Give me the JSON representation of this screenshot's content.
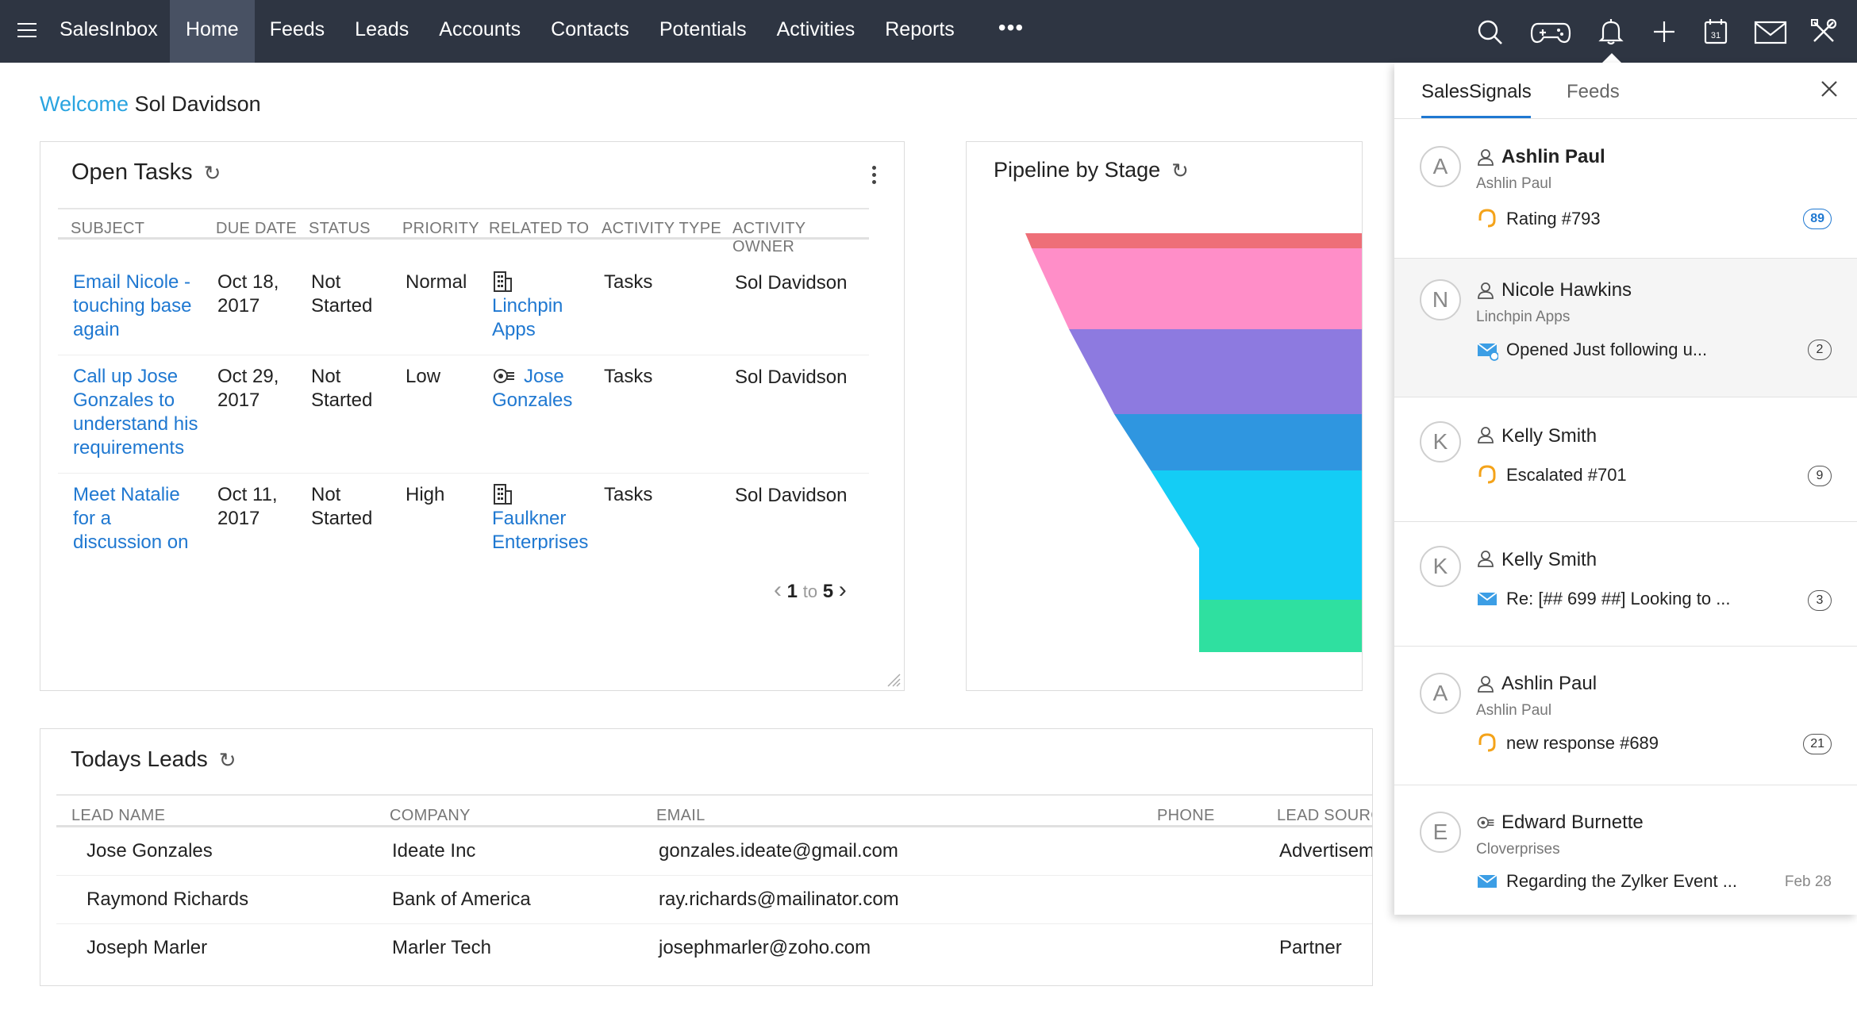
{
  "topbar": {
    "brand": "SalesInbox",
    "nav": [
      "Home",
      "Feeds",
      "Leads",
      "Accounts",
      "Contacts",
      "Potentials",
      "Activities",
      "Reports"
    ],
    "more": "•••",
    "icons": [
      "search-icon",
      "gamepad-icon",
      "bell-icon",
      "plus-icon",
      "calendar-icon",
      "mail-icon",
      "tools-icon"
    ],
    "calendar_day": "31"
  },
  "welcome": {
    "prefix": "Welcome",
    "name": "Sol Davidson"
  },
  "open_tasks": {
    "title": "Open Tasks",
    "columns": [
      "SUBJECT",
      "DUE DATE",
      "STATUS",
      "PRIORITY",
      "RELATED TO",
      "ACTIVITY TYPE",
      "ACTIVITY OWNER"
    ],
    "rows": [
      {
        "subject": "Email Nicole - touching base again",
        "due": "Oct 18, 2017",
        "status": "Not Started",
        "priority": "Normal",
        "related": "Linchpin Apps",
        "related_icon": "building-icon",
        "type": "Tasks",
        "owner": "Sol Davidson"
      },
      {
        "subject": "Call up Jose Gonzales to understand his requirements",
        "due": "Oct 29, 2017",
        "status": "Not Started",
        "priority": "Low",
        "related": "Jose Gonzales",
        "related_icon": "contact-icon",
        "type": "Tasks",
        "owner": "Sol Davidson"
      },
      {
        "subject": "Meet Natalie for a discussion on the proposal",
        "due": "Oct 11, 2017",
        "status": "Not Started",
        "priority": "High",
        "related": "Faulkner Enterprises",
        "related_icon": "building-icon",
        "type": "Tasks",
        "owner": "Sol Davidson"
      }
    ],
    "pager": {
      "from": "1",
      "to_word": "to",
      "to": "5"
    }
  },
  "pipeline": {
    "title": "Pipeline by Stage",
    "colors": [
      "#ee6f78",
      "#ff8ec8",
      "#8d7ae0",
      "#2f96e0",
      "#14cdf5",
      "#2fe0a0"
    ]
  },
  "todays_leads": {
    "title": "Todays Leads",
    "columns": [
      "LEAD NAME",
      "COMPANY",
      "EMAIL",
      "PHONE",
      "LEAD SOURCE"
    ],
    "rows": [
      {
        "name": "Jose Gonzales",
        "company": "Ideate Inc",
        "email": "gonzales.ideate@gmail.com",
        "phone": "",
        "source": "Advertisement"
      },
      {
        "name": "Raymond Richards",
        "company": "Bank of America",
        "email": "ray.richards@mailinator.com",
        "phone": "",
        "source": ""
      },
      {
        "name": "Joseph Marler",
        "company": "Marler Tech",
        "email": "josephmarler@zoho.com",
        "phone": "",
        "source": "Partner"
      }
    ]
  },
  "signals_panel": {
    "tabs": [
      "SalesSignals",
      "Feeds"
    ],
    "items": [
      {
        "initial": "A",
        "name": "Ashlin Paul",
        "sub": "Ashlin Paul",
        "icon": "support-icon",
        "msg": "Rating #793",
        "badge": "89",
        "name_icon": "person-icon"
      },
      {
        "initial": "N",
        "name": "Nicole Hawkins",
        "sub": "Linchpin Apps",
        "icon": "mail-open-icon",
        "msg": "Opened Just following u...",
        "badge": "2",
        "name_icon": "person-icon"
      },
      {
        "initial": "K",
        "name": "Kelly Smith",
        "sub": "",
        "icon": "support-icon",
        "msg": "Escalated #701",
        "badge": "9",
        "name_icon": "person-icon"
      },
      {
        "initial": "K",
        "name": "Kelly Smith",
        "sub": "",
        "icon": "mail-icon",
        "msg": "Re: [## 699 ##] Looking to ...",
        "badge": "3",
        "name_icon": "person-icon"
      },
      {
        "initial": "A",
        "name": "Ashlin Paul",
        "sub": "Ashlin Paul",
        "icon": "support-icon",
        "msg": "new response #689",
        "badge": "21",
        "name_icon": "person-icon"
      },
      {
        "initial": "E",
        "name": "Edward Burnette",
        "sub": "Cloverprises",
        "icon": "mail-icon",
        "msg": "Regarding the Zylker Event ...",
        "date": "Feb 28",
        "name_icon": "contact-icon"
      }
    ]
  }
}
